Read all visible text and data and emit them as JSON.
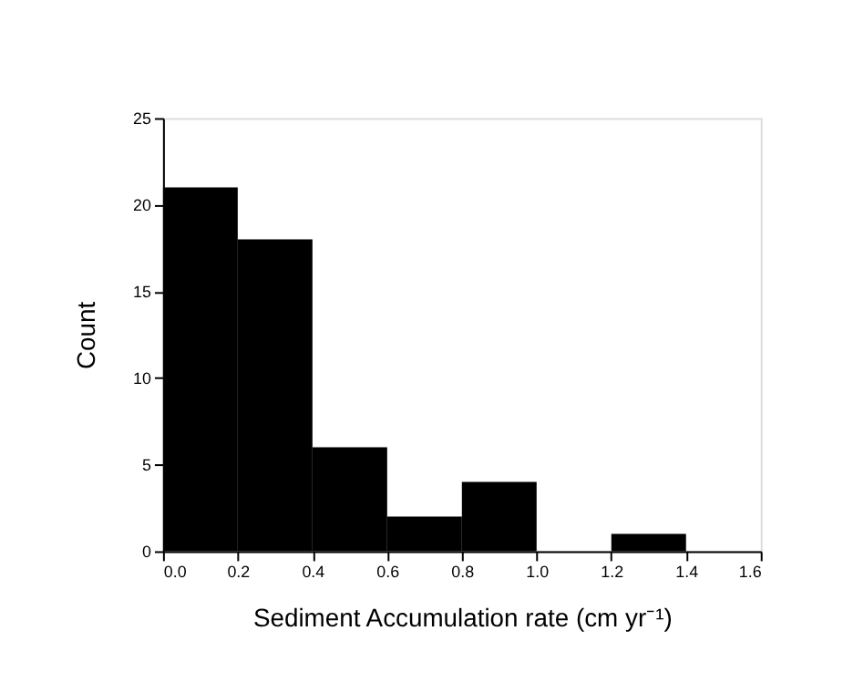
{
  "chart_data": {
    "type": "histogram",
    "xlabel": "Sediment Accumulation rate (cm yr⁻¹)",
    "ylabel": "Count",
    "bins": [
      0,
      0.2,
      0.4,
      0.6,
      0.8,
      1.0,
      1.2,
      1.4
    ],
    "values": [
      21,
      18,
      6,
      2,
      4,
      0,
      1
    ],
    "color": "#000000",
    "xlim": [
      0,
      1.6
    ],
    "xticks": [
      {
        "value": 0,
        "label": "0.0"
      },
      {
        "value": 0.2,
        "label": "0.2"
      },
      {
        "value": 0.4,
        "label": "0.4"
      },
      {
        "value": 0.6,
        "label": "0.6"
      },
      {
        "value": 0.8,
        "label": "0.8"
      },
      {
        "value": 1.0,
        "label": "1.0"
      },
      {
        "value": 1.2,
        "label": "1.2"
      },
      {
        "value": 1.4,
        "label": "1.4"
      },
      {
        "value": 1.6,
        "label": "1.6"
      }
    ],
    "ylim": [
      0,
      25
    ],
    "yticks": [
      0,
      5,
      10,
      15,
      20,
      25
    ]
  }
}
